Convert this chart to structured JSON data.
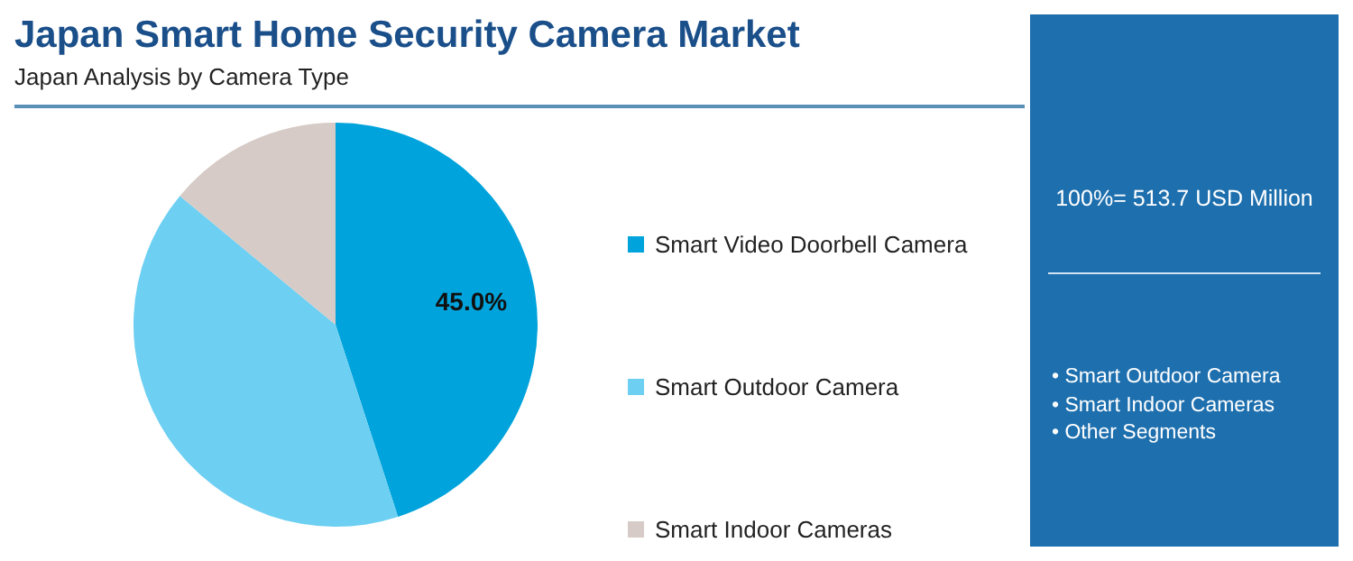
{
  "chart_data": {
    "type": "pie",
    "title": "Japan Smart Home Security Camera Market",
    "subtitle": "Japan Analysis by Camera Type",
    "categories": [
      "Smart Video Doorbell Camera",
      "Smart Outdoor Camera",
      "Smart Indoor Cameras"
    ],
    "values": [
      45.0,
      41.0,
      14.0
    ],
    "colors": [
      "#00a3db",
      "#6dcff2",
      "#d6cbc6"
    ],
    "value_labels": [
      "45.0%",
      null,
      null
    ],
    "legend": "right",
    "annotations": [
      "100%= 513.7 USD Million",
      "• Smart Outdoor Camera",
      "• Smart Indoor Cameras",
      "• Other Segments"
    ]
  }
}
